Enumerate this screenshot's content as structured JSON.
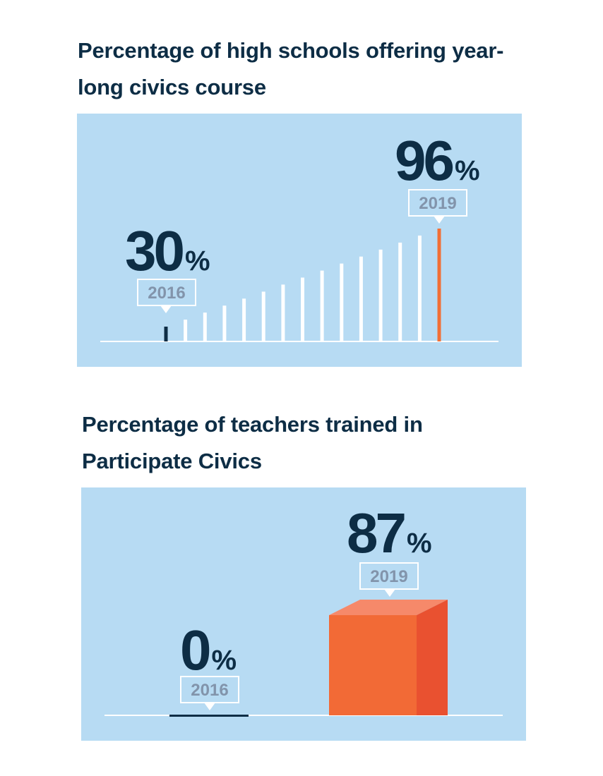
{
  "chart_data": [
    {
      "type": "bar",
      "title": "Percentage of high schools offering year-long civics course",
      "start": {
        "year": "2016",
        "value": 30,
        "value_text": "30",
        "unit": "%"
      },
      "end": {
        "year": "2019",
        "value": 96,
        "value_text": "96",
        "unit": "%"
      },
      "colors": {
        "start_bar": "#0d2d45",
        "mid_bars": "#ffffff",
        "end_bar": "#f26f36",
        "background": "#b7dbf3"
      }
    },
    {
      "type": "bar",
      "title": "Percentage of teachers trained in Participate Civics",
      "categories": [
        "2016",
        "2019"
      ],
      "values": [
        0,
        87
      ],
      "value_texts": [
        "0",
        "87"
      ],
      "unit": "%",
      "colors": {
        "start_bar": "#0d2d45",
        "end_bar": "#f26a36",
        "background": "#b7dbf3"
      }
    }
  ]
}
